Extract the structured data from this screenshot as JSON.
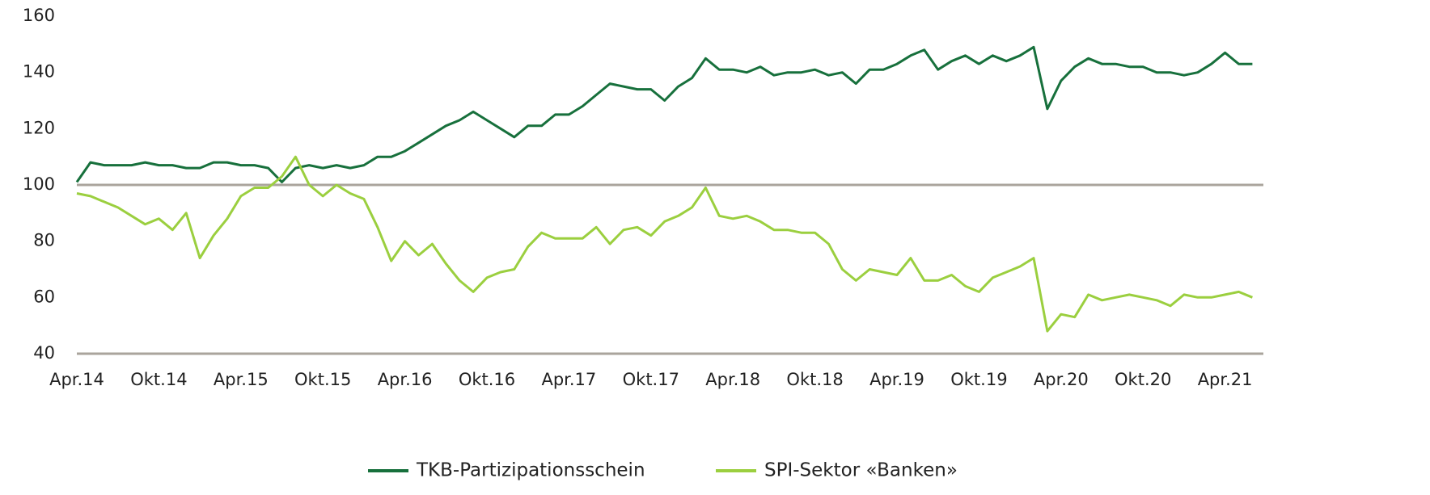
{
  "chart_data": {
    "type": "line",
    "categories": [
      "Apr.14",
      null,
      null,
      null,
      null,
      null,
      "Okt.14",
      null,
      null,
      null,
      null,
      null,
      "Apr.15",
      null,
      null,
      null,
      null,
      null,
      "Okt.15",
      null,
      null,
      null,
      null,
      null,
      "Apr.16",
      null,
      null,
      null,
      null,
      null,
      "Okt.16",
      null,
      null,
      null,
      null,
      null,
      "Apr.17",
      null,
      null,
      null,
      null,
      null,
      "Okt.17",
      null,
      null,
      null,
      null,
      null,
      "Apr.18",
      null,
      null,
      null,
      null,
      null,
      "Okt.18",
      null,
      null,
      null,
      null,
      null,
      "Apr.19",
      null,
      null,
      null,
      null,
      null,
      "Okt.19",
      null,
      null,
      null,
      null,
      null,
      "Apr.20",
      null,
      null,
      null,
      null,
      null,
      "Okt.20",
      null,
      null,
      null,
      null,
      null,
      "Apr.21",
      null,
      null
    ],
    "series": [
      {
        "name": "TKB-Partizipationsschein",
        "color": "#17703c",
        "values": [
          101,
          108,
          107,
          107,
          107,
          108,
          107,
          107,
          106,
          106,
          108,
          108,
          107,
          107,
          106,
          101,
          106,
          107,
          106,
          107,
          106,
          107,
          110,
          110,
          112,
          115,
          118,
          121,
          123,
          126,
          123,
          120,
          117,
          121,
          121,
          125,
          125,
          128,
          132,
          136,
          135,
          134,
          134,
          130,
          135,
          138,
          145,
          141,
          141,
          140,
          142,
          139,
          140,
          140,
          141,
          139,
          140,
          136,
          141,
          141,
          143,
          146,
          148,
          141,
          144,
          146,
          143,
          146,
          144,
          146,
          149,
          127,
          137,
          142,
          145,
          143,
          143,
          142,
          142,
          140,
          140,
          139,
          140,
          143,
          147,
          143,
          143
        ]
      },
      {
        "name": "SPI-Sektor «Banken»",
        "color": "#9bcf3f",
        "values": [
          97,
          96,
          94,
          92,
          89,
          86,
          88,
          84,
          90,
          74,
          82,
          88,
          96,
          99,
          99,
          103,
          110,
          100,
          96,
          100,
          97,
          95,
          85,
          73,
          80,
          75,
          79,
          72,
          66,
          62,
          67,
          69,
          70,
          78,
          83,
          81,
          81,
          81,
          85,
          79,
          84,
          85,
          82,
          87,
          89,
          92,
          99,
          89,
          88,
          89,
          87,
          84,
          84,
          83,
          83,
          79,
          70,
          66,
          70,
          69,
          68,
          74,
          66,
          66,
          68,
          64,
          62,
          67,
          69,
          71,
          74,
          48,
          54,
          53,
          61,
          59,
          60,
          61,
          60,
          59,
          57,
          61,
          60,
          60,
          61,
          62,
          60
        ]
      }
    ],
    "ylim": [
      40,
      160
    ],
    "yticks": [
      40,
      60,
      80,
      100,
      120,
      140,
      160
    ],
    "reference_line": 100,
    "legend": "bottom"
  }
}
